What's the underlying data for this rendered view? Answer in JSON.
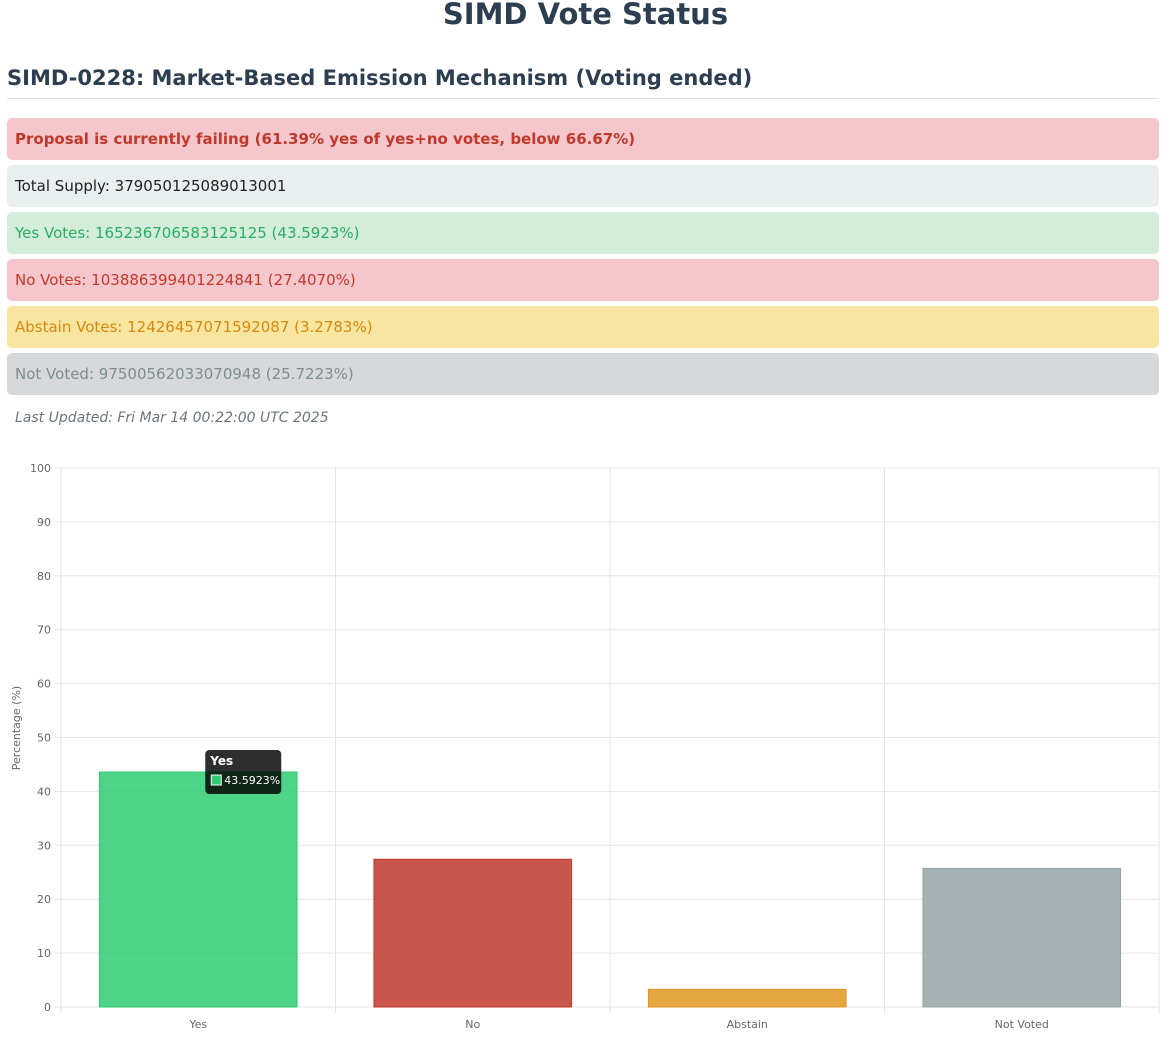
{
  "header": {
    "title": "SIMD Vote Status"
  },
  "proposal": {
    "title": "SIMD-0228: Market-Based Emission Mechanism (Voting ended)",
    "status_text": "Proposal is currently failing (61.39% yes of yes+no votes, below 66.67%)",
    "total_supply": "Total Supply: 379050125089013001",
    "yes_votes": "Yes Votes: 165236706583125125 (43.5923%)",
    "no_votes": "No Votes: 103886399401224841 (27.4070%)",
    "abstain_votes": "Abstain Votes: 12426457071592087 (3.2783%)",
    "not_voted": "Not Voted: 97500562033070948 (25.7223%)",
    "last_updated": "Last Updated: Fri Mar 14 00:22:00 UTC 2025"
  },
  "colors": {
    "yes": "#2ecc71",
    "no": "#c0392b",
    "abstain": "#e09620",
    "not_voted": "#95a5a6"
  },
  "tooltip": {
    "title": "Yes",
    "value": "43.5923%"
  },
  "chart_data": {
    "type": "bar",
    "categories": [
      "Yes",
      "No",
      "Abstain",
      "Not Voted"
    ],
    "values": [
      43.5923,
      27.407,
      3.2783,
      25.7223
    ],
    "title": "",
    "xlabel": "",
    "ylabel": "Percentage (%)",
    "ylim": [
      0,
      100
    ],
    "yticks": [
      0,
      10,
      20,
      30,
      40,
      50,
      60,
      70,
      80,
      90,
      100
    ],
    "grid": true,
    "colors": [
      "#2ecc71",
      "#c0392b",
      "#e09620",
      "#95a5a6"
    ]
  }
}
